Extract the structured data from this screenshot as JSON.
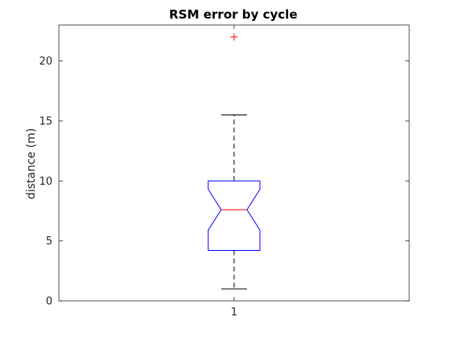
{
  "chart_data": {
    "type": "box",
    "title": "RSM error by cycle",
    "xlabel": "",
    "ylabel": "distance (m)",
    "categories": [
      "1"
    ],
    "ylim": [
      0,
      23
    ],
    "yticks": [
      0,
      5,
      10,
      15,
      20
    ],
    "grid": false,
    "notched": true,
    "boxes": [
      {
        "category": "1",
        "whisker_low": 1.0,
        "q1": 4.2,
        "median": 7.6,
        "notch_low": 5.9,
        "notch_high": 9.3,
        "q3": 10.0,
        "whisker_high": 15.5,
        "outliers": [
          22.0
        ]
      }
    ],
    "colors": {
      "box": "#0000ff",
      "median": "#ff0000",
      "whisker": "#000000",
      "outlier": "#ff0000",
      "axes": "#262626"
    }
  }
}
